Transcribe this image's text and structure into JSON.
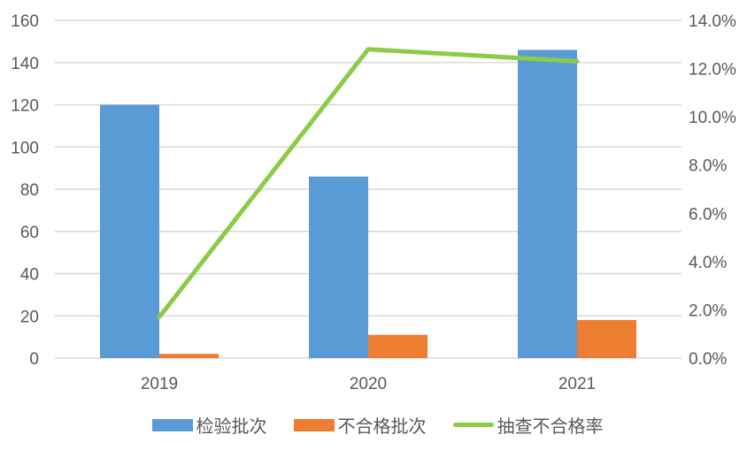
{
  "chart_data": {
    "type": "bar",
    "title": "",
    "categories": [
      "2019",
      "2020",
      "2021"
    ],
    "series": [
      {
        "name": "检验批次",
        "type": "bar",
        "axis": "left",
        "color": "#5B9BD5",
        "values": [
          120,
          86,
          146
        ]
      },
      {
        "name": "不合格批次",
        "type": "bar",
        "axis": "left",
        "color": "#ED7D31",
        "values": [
          2,
          11,
          18
        ]
      },
      {
        "name": "抽查不合格率",
        "type": "line",
        "axis": "right",
        "color": "#8BCB4A",
        "values": [
          0.017,
          0.128,
          0.123
        ]
      }
    ],
    "left_axis": {
      "ylim": [
        0,
        160
      ],
      "ticks": [
        "0",
        "20",
        "40",
        "60",
        "80",
        "100",
        "120",
        "140",
        "160"
      ]
    },
    "right_axis": {
      "ylim": [
        0,
        0.14
      ],
      "ticks": [
        "0.0%",
        "2.0%",
        "4.0%",
        "6.0%",
        "8.0%",
        "10.0%",
        "12.0%",
        "14.0%"
      ]
    },
    "grid": true,
    "legend_position": "bottom"
  },
  "legend": [
    {
      "label": "检验批次",
      "color": "#5B9BD5",
      "kind": "bar"
    },
    {
      "label": "不合格批次",
      "color": "#ED7D31",
      "kind": "bar"
    },
    {
      "label": "抽查不合格率",
      "color": "#8BCB4A",
      "kind": "line"
    }
  ]
}
